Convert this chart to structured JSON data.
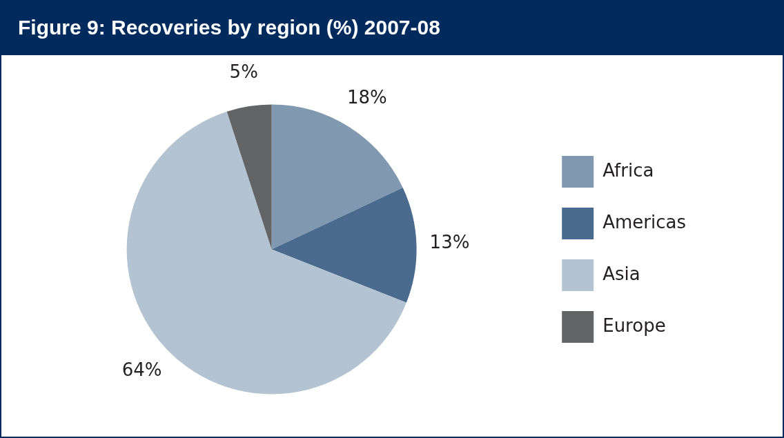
{
  "chart_data": {
    "type": "pie",
    "title": "Figure 9: Recoveries by region (%) 2007-08",
    "categories": [
      "Africa",
      "Americas",
      "Asia",
      "Europe"
    ],
    "values": [
      18,
      13,
      64,
      5
    ],
    "value_labels": [
      "18%",
      "13%",
      "64%",
      "5%"
    ],
    "colors": [
      "#8199b0",
      "#4a6b8e",
      "#b4c3d1",
      "#636466"
    ],
    "legend": "right"
  }
}
